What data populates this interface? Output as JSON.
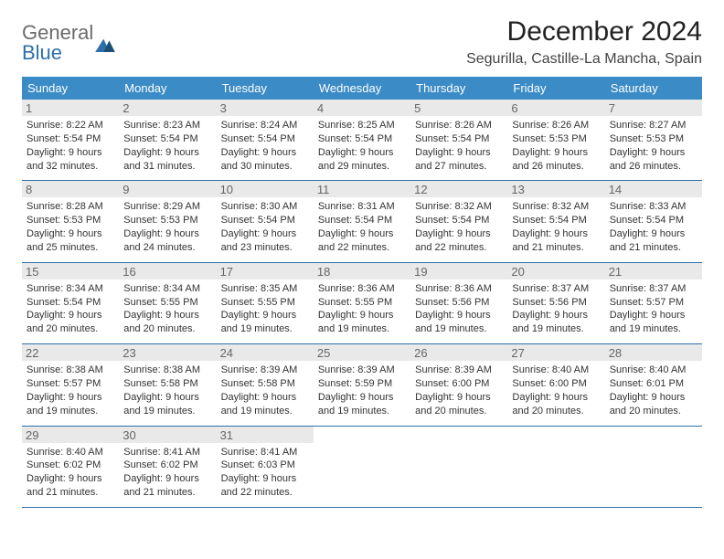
{
  "logo": {
    "general": "General",
    "blue": "Blue"
  },
  "title": "December 2024",
  "location": "Segurilla, Castille-La Mancha, Spain",
  "colors": {
    "header_bg": "#3b8bc6",
    "header_text": "#ffffff",
    "row_border": "#2f6fa8",
    "daynum_bg": "#e9e9e9",
    "daynum_text": "#666666",
    "body_text": "#333333",
    "logo_gray": "#6b6b6b",
    "logo_blue": "#2f6fa8"
  },
  "weekdays": [
    "Sunday",
    "Monday",
    "Tuesday",
    "Wednesday",
    "Thursday",
    "Friday",
    "Saturday"
  ],
  "weeks": [
    [
      {
        "n": "1",
        "sr": "Sunrise: 8:22 AM",
        "ss": "Sunset: 5:54 PM",
        "d1": "Daylight: 9 hours",
        "d2": "and 32 minutes."
      },
      {
        "n": "2",
        "sr": "Sunrise: 8:23 AM",
        "ss": "Sunset: 5:54 PM",
        "d1": "Daylight: 9 hours",
        "d2": "and 31 minutes."
      },
      {
        "n": "3",
        "sr": "Sunrise: 8:24 AM",
        "ss": "Sunset: 5:54 PM",
        "d1": "Daylight: 9 hours",
        "d2": "and 30 minutes."
      },
      {
        "n": "4",
        "sr": "Sunrise: 8:25 AM",
        "ss": "Sunset: 5:54 PM",
        "d1": "Daylight: 9 hours",
        "d2": "and 29 minutes."
      },
      {
        "n": "5",
        "sr": "Sunrise: 8:26 AM",
        "ss": "Sunset: 5:54 PM",
        "d1": "Daylight: 9 hours",
        "d2": "and 27 minutes."
      },
      {
        "n": "6",
        "sr": "Sunrise: 8:26 AM",
        "ss": "Sunset: 5:53 PM",
        "d1": "Daylight: 9 hours",
        "d2": "and 26 minutes."
      },
      {
        "n": "7",
        "sr": "Sunrise: 8:27 AM",
        "ss": "Sunset: 5:53 PM",
        "d1": "Daylight: 9 hours",
        "d2": "and 26 minutes."
      }
    ],
    [
      {
        "n": "8",
        "sr": "Sunrise: 8:28 AM",
        "ss": "Sunset: 5:53 PM",
        "d1": "Daylight: 9 hours",
        "d2": "and 25 minutes."
      },
      {
        "n": "9",
        "sr": "Sunrise: 8:29 AM",
        "ss": "Sunset: 5:53 PM",
        "d1": "Daylight: 9 hours",
        "d2": "and 24 minutes."
      },
      {
        "n": "10",
        "sr": "Sunrise: 8:30 AM",
        "ss": "Sunset: 5:54 PM",
        "d1": "Daylight: 9 hours",
        "d2": "and 23 minutes."
      },
      {
        "n": "11",
        "sr": "Sunrise: 8:31 AM",
        "ss": "Sunset: 5:54 PM",
        "d1": "Daylight: 9 hours",
        "d2": "and 22 minutes."
      },
      {
        "n": "12",
        "sr": "Sunrise: 8:32 AM",
        "ss": "Sunset: 5:54 PM",
        "d1": "Daylight: 9 hours",
        "d2": "and 22 minutes."
      },
      {
        "n": "13",
        "sr": "Sunrise: 8:32 AM",
        "ss": "Sunset: 5:54 PM",
        "d1": "Daylight: 9 hours",
        "d2": "and 21 minutes."
      },
      {
        "n": "14",
        "sr": "Sunrise: 8:33 AM",
        "ss": "Sunset: 5:54 PM",
        "d1": "Daylight: 9 hours",
        "d2": "and 21 minutes."
      }
    ],
    [
      {
        "n": "15",
        "sr": "Sunrise: 8:34 AM",
        "ss": "Sunset: 5:54 PM",
        "d1": "Daylight: 9 hours",
        "d2": "and 20 minutes."
      },
      {
        "n": "16",
        "sr": "Sunrise: 8:34 AM",
        "ss": "Sunset: 5:55 PM",
        "d1": "Daylight: 9 hours",
        "d2": "and 20 minutes."
      },
      {
        "n": "17",
        "sr": "Sunrise: 8:35 AM",
        "ss": "Sunset: 5:55 PM",
        "d1": "Daylight: 9 hours",
        "d2": "and 19 minutes."
      },
      {
        "n": "18",
        "sr": "Sunrise: 8:36 AM",
        "ss": "Sunset: 5:55 PM",
        "d1": "Daylight: 9 hours",
        "d2": "and 19 minutes."
      },
      {
        "n": "19",
        "sr": "Sunrise: 8:36 AM",
        "ss": "Sunset: 5:56 PM",
        "d1": "Daylight: 9 hours",
        "d2": "and 19 minutes."
      },
      {
        "n": "20",
        "sr": "Sunrise: 8:37 AM",
        "ss": "Sunset: 5:56 PM",
        "d1": "Daylight: 9 hours",
        "d2": "and 19 minutes."
      },
      {
        "n": "21",
        "sr": "Sunrise: 8:37 AM",
        "ss": "Sunset: 5:57 PM",
        "d1": "Daylight: 9 hours",
        "d2": "and 19 minutes."
      }
    ],
    [
      {
        "n": "22",
        "sr": "Sunrise: 8:38 AM",
        "ss": "Sunset: 5:57 PM",
        "d1": "Daylight: 9 hours",
        "d2": "and 19 minutes."
      },
      {
        "n": "23",
        "sr": "Sunrise: 8:38 AM",
        "ss": "Sunset: 5:58 PM",
        "d1": "Daylight: 9 hours",
        "d2": "and 19 minutes."
      },
      {
        "n": "24",
        "sr": "Sunrise: 8:39 AM",
        "ss": "Sunset: 5:58 PM",
        "d1": "Daylight: 9 hours",
        "d2": "and 19 minutes."
      },
      {
        "n": "25",
        "sr": "Sunrise: 8:39 AM",
        "ss": "Sunset: 5:59 PM",
        "d1": "Daylight: 9 hours",
        "d2": "and 19 minutes."
      },
      {
        "n": "26",
        "sr": "Sunrise: 8:39 AM",
        "ss": "Sunset: 6:00 PM",
        "d1": "Daylight: 9 hours",
        "d2": "and 20 minutes."
      },
      {
        "n": "27",
        "sr": "Sunrise: 8:40 AM",
        "ss": "Sunset: 6:00 PM",
        "d1": "Daylight: 9 hours",
        "d2": "and 20 minutes."
      },
      {
        "n": "28",
        "sr": "Sunrise: 8:40 AM",
        "ss": "Sunset: 6:01 PM",
        "d1": "Daylight: 9 hours",
        "d2": "and 20 minutes."
      }
    ],
    [
      {
        "n": "29",
        "sr": "Sunrise: 8:40 AM",
        "ss": "Sunset: 6:02 PM",
        "d1": "Daylight: 9 hours",
        "d2": "and 21 minutes."
      },
      {
        "n": "30",
        "sr": "Sunrise: 8:41 AM",
        "ss": "Sunset: 6:02 PM",
        "d1": "Daylight: 9 hours",
        "d2": "and 21 minutes."
      },
      {
        "n": "31",
        "sr": "Sunrise: 8:41 AM",
        "ss": "Sunset: 6:03 PM",
        "d1": "Daylight: 9 hours",
        "d2": "and 22 minutes."
      },
      null,
      null,
      null,
      null
    ]
  ]
}
